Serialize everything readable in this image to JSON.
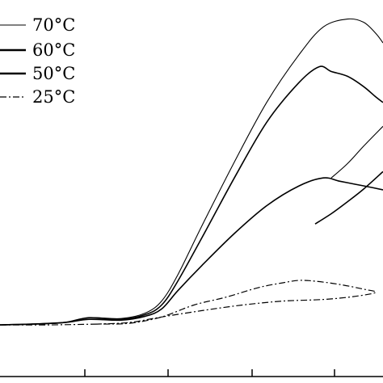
{
  "chart_data": {
    "type": "line",
    "title": "",
    "xlabel": "",
    "ylabel": "",
    "x_ticks": [
      105,
      208,
      312,
      414
    ],
    "xlim": [
      0,
      474
    ],
    "ylim": [
      0,
      474
    ],
    "legend_position": "top-left",
    "series": [
      {
        "name": "70°C",
        "style": "solid-thin",
        "x": [
          0,
          40,
          80,
          110,
          150,
          180,
          200,
          220,
          250,
          290,
          330,
          370,
          400,
          430,
          450,
          465,
          474
        ],
        "y": [
          65,
          66,
          68,
          74,
          73,
          80,
          95,
          128,
          190,
          270,
          345,
          405,
          440,
          450,
          446,
          432,
          420
        ],
        "branch_x": [
          474,
          450,
          430,
          410
        ],
        "branch_y": [
          315,
          290,
          268,
          250
        ]
      },
      {
        "name": "60°C",
        "style": "solid-thick",
        "x": [
          0,
          40,
          80,
          110,
          150,
          180,
          200,
          220,
          250,
          290,
          330,
          370,
          395,
          410,
          430,
          450,
          465,
          474
        ],
        "y": [
          65,
          66,
          68,
          74,
          72,
          78,
          90,
          120,
          175,
          250,
          320,
          370,
          390,
          384,
          378,
          365,
          352,
          345
        ],
        "branch_x": [
          474,
          450,
          430,
          410,
          390
        ],
        "branch_y": [
          258,
          236,
          220,
          205,
          192
        ]
      },
      {
        "name": "50°C",
        "style": "solid-thick",
        "x": [
          0,
          40,
          80,
          110,
          150,
          180,
          200,
          220,
          250,
          290,
          330,
          370,
          400,
          420,
          440,
          460,
          474
        ],
        "y": [
          65,
          66,
          68,
          72,
          71,
          76,
          85,
          108,
          140,
          180,
          215,
          240,
          250,
          246,
          242,
          238,
          235
        ]
      },
      {
        "name": "25°C",
        "style": "dash-dot",
        "x": [
          0,
          60,
          120,
          160,
          200,
          240,
          280,
          320,
          350,
          370,
          390,
          420,
          450,
          465,
          440,
          400,
          350,
          300,
          250,
          200,
          160,
          120
        ],
        "y": [
          65,
          65,
          66,
          67,
          75,
          90,
          100,
          112,
          118,
          121,
          120,
          116,
          110,
          106,
          101,
          97,
          95,
          90,
          83,
          75,
          68,
          66
        ]
      }
    ]
  }
}
